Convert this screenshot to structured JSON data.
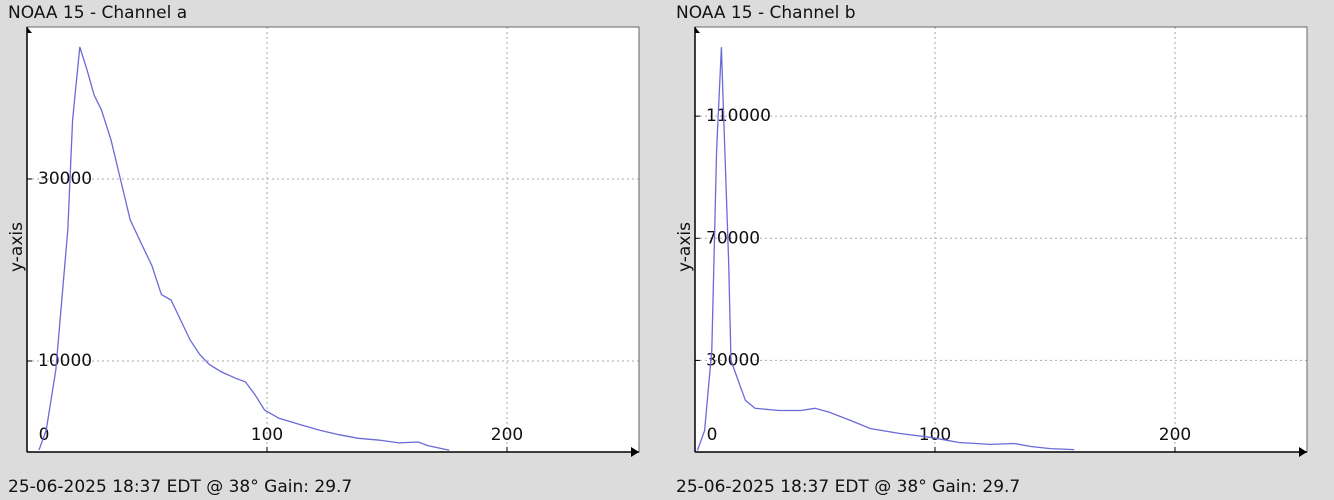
{
  "chart_data": [
    {
      "type": "line",
      "title": "NOAA 15 - Channel a",
      "ylabel": "y-axis",
      "footer": "25-06-2025 18:37 EDT @ 38° Gain: 29.7",
      "color": "#6a6ad8",
      "grid": true,
      "xlim": [
        0,
        255
      ],
      "xticks": [
        0,
        100,
        200
      ],
      "ylim": [
        0,
        46700
      ],
      "yticks": [
        10000,
        30000
      ],
      "x": [
        5,
        8,
        12,
        17,
        19,
        22,
        25,
        28,
        31,
        35,
        39,
        43,
        48,
        52,
        56,
        60,
        64,
        68,
        72,
        76,
        81,
        87,
        91,
        95,
        99,
        105,
        114,
        122,
        130,
        138,
        147,
        155,
        163,
        167,
        176
      ],
      "values": [
        220,
        2400,
        9000,
        24400,
        36500,
        44500,
        42000,
        39200,
        37600,
        34300,
        29900,
        25500,
        22700,
        20500,
        17300,
        16700,
        14500,
        12300,
        10700,
        9600,
        8800,
        8100,
        7700,
        6300,
        4600,
        3700,
        3000,
        2400,
        1900,
        1500,
        1300,
        1000,
        1100,
        700,
        200
      ]
    },
    {
      "type": "line",
      "title": "NOAA 15 - Channel b",
      "ylabel": "y-axis",
      "footer": "25-06-2025 18:37 EDT @ 38° Gain: 29.7",
      "color": "#6a6ad8",
      "grid": true,
      "xlim": [
        0,
        255
      ],
      "xticks": [
        0,
        100,
        200
      ],
      "ylim": [
        0,
        139200
      ],
      "yticks": [
        30000,
        70000,
        110000
      ],
      "x": [
        1,
        4,
        7,
        9,
        11,
        12,
        14,
        15,
        18,
        21,
        25,
        35,
        44,
        50,
        56,
        65,
        73,
        85,
        98,
        110,
        123,
        133,
        140,
        148,
        158
      ],
      "values": [
        500,
        7000,
        33300,
        98800,
        132600,
        108700,
        62800,
        30000,
        23400,
        16900,
        14300,
        13600,
        13600,
        14300,
        13000,
        10300,
        7700,
        6100,
        4800,
        3100,
        2500,
        2800,
        1800,
        1100,
        800
      ]
    }
  ]
}
